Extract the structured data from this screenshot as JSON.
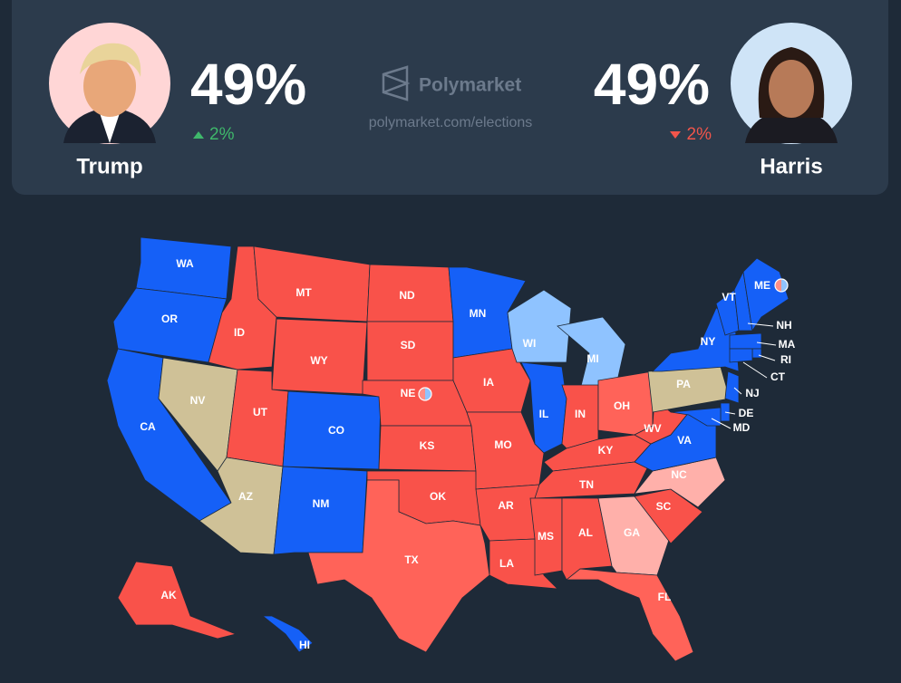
{
  "header": {
    "candidates": [
      {
        "name": "Trump",
        "percent": "49%",
        "change": "2%",
        "direction": "up",
        "photo_color": "#ffd6d6"
      },
      {
        "name": "Harris",
        "percent": "49%",
        "change": "2%",
        "direction": "down",
        "photo_color": "#cfe4f7"
      }
    ],
    "brand": "Polymarket",
    "url": "polymarket.com/elections"
  },
  "map": {
    "states": [
      {
        "label": "WA",
        "color": "#1560f7"
      },
      {
        "label": "OR",
        "color": "#1560f7"
      },
      {
        "label": "CA",
        "color": "#1560f7"
      },
      {
        "label": "NV",
        "color": "#cfc197"
      },
      {
        "label": "ID",
        "color": "#f9524a"
      },
      {
        "label": "MT",
        "color": "#f9524a"
      },
      {
        "label": "WY",
        "color": "#f9524a"
      },
      {
        "label": "UT",
        "color": "#f9524a"
      },
      {
        "label": "AZ",
        "color": "#cfc197"
      },
      {
        "label": "CO",
        "color": "#1560f7"
      },
      {
        "label": "NM",
        "color": "#1560f7"
      },
      {
        "label": "ND",
        "color": "#f9524a"
      },
      {
        "label": "SD",
        "color": "#f9524a"
      },
      {
        "label": "NE",
        "color": "#f9524a"
      },
      {
        "label": "KS",
        "color": "#f9524a"
      },
      {
        "label": "OK",
        "color": "#f9524a"
      },
      {
        "label": "TX",
        "color": "#ff6359"
      },
      {
        "label": "MN",
        "color": "#1560f7"
      },
      {
        "label": "IA",
        "color": "#f9524a"
      },
      {
        "label": "MO",
        "color": "#f9524a"
      },
      {
        "label": "AR",
        "color": "#f9524a"
      },
      {
        "label": "LA",
        "color": "#f9524a"
      },
      {
        "label": "WI",
        "color": "#8fc3ff"
      },
      {
        "label": "IL",
        "color": "#1560f7"
      },
      {
        "label": "MI",
        "color": "#8fc3ff"
      },
      {
        "label": "IN",
        "color": "#f9524a"
      },
      {
        "label": "OH",
        "color": "#ff6359"
      },
      {
        "label": "KY",
        "color": "#f9524a"
      },
      {
        "label": "TN",
        "color": "#f9524a"
      },
      {
        "label": "MS",
        "color": "#f9524a"
      },
      {
        "label": "AL",
        "color": "#f9524a"
      },
      {
        "label": "GA",
        "color": "#ffb0aa"
      },
      {
        "label": "FL",
        "color": "#ff6359"
      },
      {
        "label": "SC",
        "color": "#f9524a"
      },
      {
        "label": "NC",
        "color": "#ffb0aa"
      },
      {
        "label": "VA",
        "color": "#1560f7"
      },
      {
        "label": "WV",
        "color": "#f9524a"
      },
      {
        "label": "PA",
        "color": "#cfc197"
      },
      {
        "label": "NY",
        "color": "#1560f7"
      },
      {
        "label": "NJ",
        "color": "#1560f7"
      },
      {
        "label": "DE",
        "color": "#1560f7"
      },
      {
        "label": "MD",
        "color": "#1560f7"
      },
      {
        "label": "VT",
        "color": "#1560f7"
      },
      {
        "label": "NH",
        "color": "#1560f7"
      },
      {
        "label": "ME",
        "color": "#1560f7"
      },
      {
        "label": "MA",
        "color": "#1560f7"
      },
      {
        "label": "RI",
        "color": "#1560f7"
      },
      {
        "label": "CT",
        "color": "#1560f7"
      },
      {
        "label": "AK",
        "color": "#f9524a"
      },
      {
        "label": "HI",
        "color": "#1560f7"
      }
    ]
  }
}
